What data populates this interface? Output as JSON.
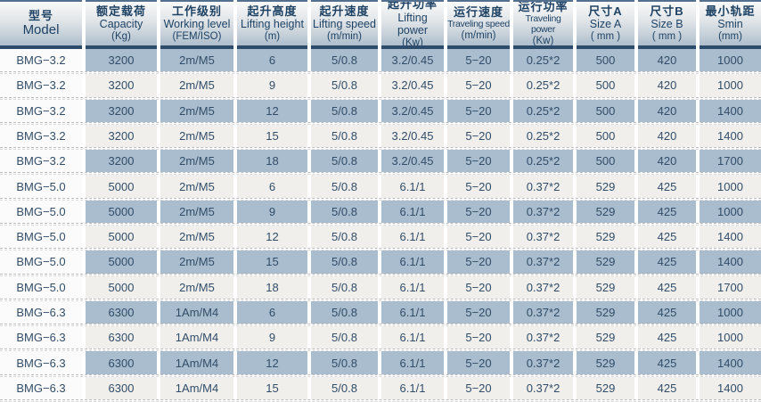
{
  "table": {
    "columns": [
      {
        "zh": "型号",
        "en": "Model",
        "unit": ""
      },
      {
        "zh": "额定载荷",
        "en": "Capacity",
        "unit": "(Kg)"
      },
      {
        "zh": "工作级别",
        "en": "Working level",
        "unit": "(FEM/ISO)"
      },
      {
        "zh": "起升高度",
        "en": "Lifting height",
        "unit": "(m)"
      },
      {
        "zh": "起升速度",
        "en": "Lifting speed",
        "unit": "(m/min)"
      },
      {
        "zh": "起升功率",
        "en": "Lifting power",
        "unit": "(Kw)"
      },
      {
        "zh": "运行速度",
        "en": "Traveling speed",
        "unit": "(m/min)"
      },
      {
        "zh": "运行功率",
        "en": "Traveling power",
        "unit": "(Kw)"
      },
      {
        "zh": "尺寸A",
        "en": "Size A",
        "unit": "( mm )"
      },
      {
        "zh": "尺寸B",
        "en": "Size B",
        "unit": "( mm )"
      },
      {
        "zh": "最小轨距",
        "en": "Smin",
        "unit": "(mm)"
      }
    ],
    "rows": [
      [
        "BMG−3.2",
        "3200",
        "2m/M5",
        "6",
        "5/0.8",
        "3.2/0.45",
        "5−20",
        "0.25*2",
        "500",
        "420",
        "1000"
      ],
      [
        "BMG−3.2",
        "3200",
        "2m/M5",
        "9",
        "5/0.8",
        "3.2/0.45",
        "5−20",
        "0.25*2",
        "500",
        "420",
        "1000"
      ],
      [
        "BMG−3.2",
        "3200",
        "2m/M5",
        "12",
        "5/0.8",
        "3.2/0.45",
        "5−20",
        "0.25*2",
        "500",
        "420",
        "1400"
      ],
      [
        "BMG−3.2",
        "3200",
        "2m/M5",
        "15",
        "5/0.8",
        "3.2/0.45",
        "5−20",
        "0.25*2",
        "500",
        "420",
        "1400"
      ],
      [
        "BMG−3.2",
        "3200",
        "2m/M5",
        "18",
        "5/0.8",
        "3.2/0.45",
        "5−20",
        "0.25*2",
        "500",
        "420",
        "1700"
      ],
      [
        "BMG−5.0",
        "5000",
        "2m/M5",
        "6",
        "5/0.8",
        "6.1/1",
        "5−20",
        "0.37*2",
        "529",
        "425",
        "1000"
      ],
      [
        "BMG−5.0",
        "5000",
        "2m/M5",
        "9",
        "5/0.8",
        "6.1/1",
        "5−20",
        "0.37*2",
        "529",
        "425",
        "1000"
      ],
      [
        "BMG−5.0",
        "5000",
        "2m/M5",
        "12",
        "5/0.8",
        "6.1/1",
        "5−20",
        "0.37*2",
        "529",
        "425",
        "1400"
      ],
      [
        "BMG−5.0",
        "5000",
        "2m/M5",
        "15",
        "5/0.8",
        "6.1/1",
        "5−20",
        "0.37*2",
        "529",
        "425",
        "1400"
      ],
      [
        "BMG−5.0",
        "5000",
        "2m/M5",
        "18",
        "5/0.8",
        "6.1/1",
        "5−20",
        "0.37*2",
        "529",
        "425",
        "1700"
      ],
      [
        "BMG−6.3",
        "6300",
        "1Am/M4",
        "6",
        "5/0.8",
        "6.1/1",
        "5−20",
        "0.37*2",
        "529",
        "425",
        "1000"
      ],
      [
        "BMG−6.3",
        "6300",
        "1Am/M4",
        "9",
        "5/0.8",
        "6.1/1",
        "5−20",
        "0.37*2",
        "529",
        "425",
        "1000"
      ],
      [
        "BMG−6.3",
        "6300",
        "1Am/M4",
        "12",
        "5/0.8",
        "6.1/1",
        "5−20",
        "0.37*2",
        "529",
        "425",
        "1400"
      ],
      [
        "BMG−6.3",
        "6300",
        "1Am/M4",
        "15",
        "5/0.8",
        "6.1/1",
        "5−20",
        "0.37*2",
        "529",
        "425",
        "1400"
      ]
    ]
  },
  "colors": {
    "header_text": "#1e4264",
    "header_gradient_top": "#f9f9f9",
    "header_gradient_bottom": "#adbecd",
    "header_border": "#2d4c6c",
    "row_blue": "#a9bdce",
    "row_light": "#f0efec",
    "model_column": "#fbfbfb",
    "cell_text": "#324d68"
  }
}
